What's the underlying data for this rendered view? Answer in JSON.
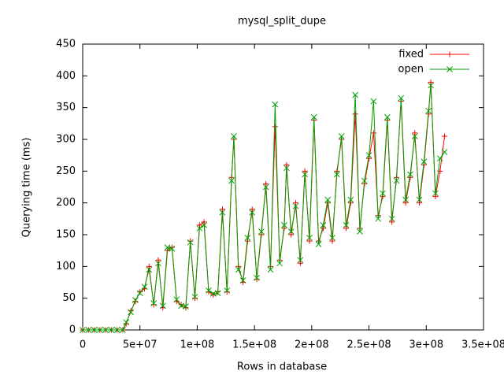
{
  "chart_data": {
    "type": "line",
    "title": "mysql_split_dupe",
    "x_label": "Rows in database",
    "y_label": "Querying time (ms)",
    "x": [
      0,
      5000000,
      10000000,
      15000000,
      20000000,
      25000000,
      30000000,
      35000000,
      38000000,
      42000000,
      46000000,
      50000000,
      54000000,
      58000000,
      62000000,
      66000000,
      70000000,
      74000000,
      78000000,
      82000000,
      86000000,
      90000000,
      94000000,
      98000000,
      102000000,
      106000000,
      110000000,
      114000000,
      118000000,
      122000000,
      126000000,
      130000000,
      132000000,
      136000000,
      140000000,
      144000000,
      148000000,
      152000000,
      156000000,
      160000000,
      164000000,
      168000000,
      172000000,
      176000000,
      178000000,
      182000000,
      186000000,
      190000000,
      194000000,
      198000000,
      202000000,
      206000000,
      210000000,
      214000000,
      218000000,
      222000000,
      226000000,
      230000000,
      234000000,
      238000000,
      242000000,
      246000000,
      250000000,
      254000000,
      258000000,
      262000000,
      266000000,
      270000000,
      274000000,
      278000000,
      282000000,
      286000000,
      290000000,
      294000000,
      298000000,
      302000000,
      304000000,
      308000000,
      312000000,
      316000000
    ],
    "series": [
      {
        "name": "fixed",
        "color": "#ff0000",
        "marker": "plus",
        "values": [
          0,
          0,
          0,
          0,
          0,
          0,
          0,
          0,
          10,
          30,
          45,
          60,
          65,
          100,
          40,
          110,
          35,
          125,
          130,
          45,
          40,
          35,
          140,
          50,
          165,
          170,
          60,
          55,
          60,
          190,
          60,
          240,
          300,
          100,
          75,
          140,
          190,
          80,
          150,
          230,
          100,
          320,
          110,
          160,
          260,
          150,
          200,
          105,
          250,
          140,
          330,
          140,
          160,
          200,
          140,
          250,
          300,
          160,
          200,
          340,
          160,
          230,
          270,
          310,
          180,
          210,
          330,
          170,
          240,
          360,
          200,
          240,
          310,
          200,
          260,
          340,
          390,
          210,
          250,
          305
        ]
      },
      {
        "name": "open",
        "color": "#00a000",
        "marker": "cross",
        "values": [
          0,
          0,
          0,
          0,
          0,
          0,
          0,
          0,
          12,
          28,
          47,
          58,
          68,
          95,
          42,
          105,
          38,
          130,
          128,
          48,
          38,
          37,
          138,
          52,
          160,
          165,
          62,
          57,
          58,
          185,
          62,
          235,
          305,
          95,
          78,
          145,
          185,
          82,
          155,
          225,
          95,
          355,
          105,
          165,
          255,
          155,
          195,
          110,
          245,
          145,
          335,
          135,
          165,
          205,
          145,
          245,
          305,
          165,
          205,
          370,
          155,
          235,
          275,
          360,
          175,
          215,
          335,
          175,
          235,
          365,
          205,
          245,
          305,
          205,
          265,
          345,
          385,
          215,
          270,
          280
        ]
      }
    ],
    "xlim": [
      0,
      350000000
    ],
    "ylim": [
      0,
      450
    ],
    "xticks": [
      0,
      {
        "value": 50000000,
        "label": "5e+07"
      },
      {
        "value": 100000000,
        "label": "1e+08"
      },
      {
        "value": 150000000,
        "label": "1.5e+08"
      },
      {
        "value": 200000000,
        "label": "2e+08"
      },
      {
        "value": 250000000,
        "label": "2.5e+08"
      },
      {
        "value": 300000000,
        "label": "3e+08"
      },
      {
        "value": 350000000,
        "label": "3.5e+08"
      }
    ],
    "yticks": [
      0,
      50,
      100,
      150,
      200,
      250,
      300,
      350,
      400,
      450
    ],
    "grid": false,
    "legend": "top-right"
  }
}
